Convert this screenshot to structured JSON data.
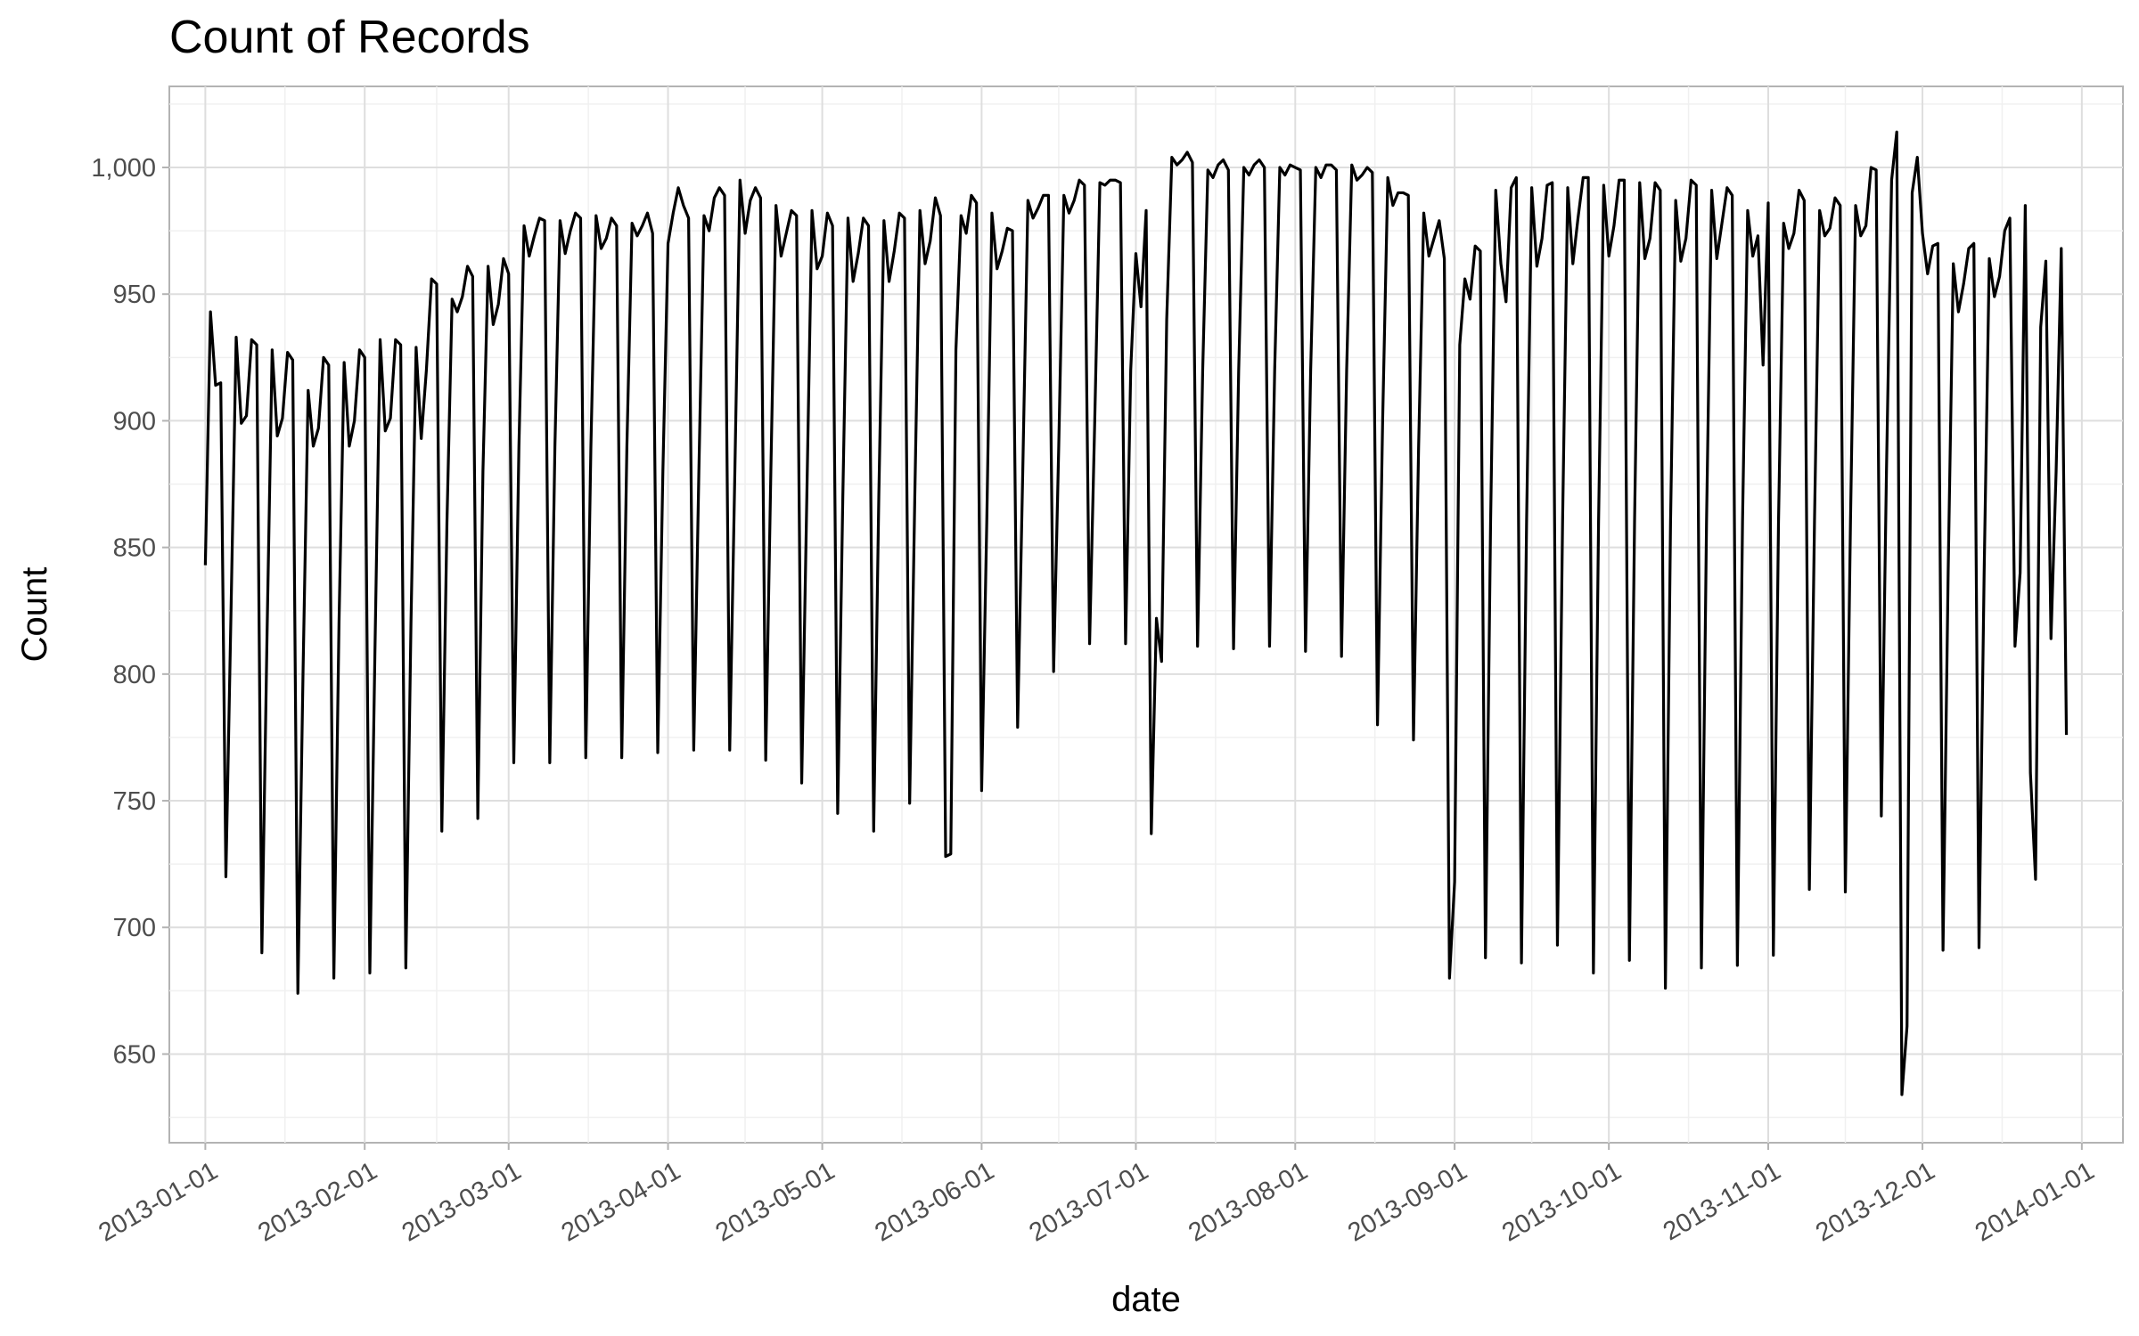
{
  "chart_data": {
    "type": "line",
    "title": "Count of Records",
    "xlabel": "date",
    "ylabel": "Count",
    "x_ticks": [
      "2013-01-01",
      "2013-02-01",
      "2013-03-01",
      "2013-04-01",
      "2013-05-01",
      "2013-06-01",
      "2013-07-01",
      "2013-08-01",
      "2013-09-01",
      "2013-10-01",
      "2013-11-01",
      "2013-12-01",
      "2014-01-01"
    ],
    "y_ticks": [
      650,
      700,
      750,
      800,
      850,
      900,
      950,
      1000
    ],
    "y_tick_labels": [
      "650",
      "700",
      "750",
      "800",
      "850",
      "900",
      "950",
      "1,000"
    ],
    "xlim": [
      "2012-12-25",
      "2014-01-09"
    ],
    "ylim": [
      615,
      1032
    ],
    "grid": true,
    "line_color": "#000000",
    "series": [
      {
        "start_date": "2013-01-01",
        "values": [
          843,
          943,
          914,
          915,
          720,
          825,
          933,
          899,
          902,
          932,
          930,
          690,
          815,
          928,
          894,
          901,
          927,
          924,
          674,
          800,
          912,
          890,
          897,
          925,
          922,
          680,
          820,
          923,
          890,
          900,
          928,
          925,
          682,
          810,
          932,
          896,
          901,
          932,
          930,
          684,
          820,
          929,
          893,
          920,
          956,
          954,
          738,
          860,
          948,
          943,
          949,
          961,
          957,
          743,
          880,
          961,
          938,
          946,
          964,
          958,
          765,
          890,
          977,
          965,
          973,
          980,
          979,
          765,
          890,
          979,
          966,
          975,
          982,
          980,
          767,
          890,
          981,
          968,
          972,
          980,
          977,
          767,
          890,
          978,
          973,
          977,
          982,
          974,
          769,
          880,
          970,
          982,
          992,
          985,
          980,
          770,
          880,
          981,
          975,
          988,
          992,
          989,
          770,
          880,
          995,
          974,
          987,
          992,
          988,
          766,
          880,
          985,
          965,
          974,
          983,
          981,
          757,
          870,
          983,
          960,
          965,
          982,
          977,
          745,
          870,
          980,
          955,
          966,
          980,
          977,
          738,
          870,
          979,
          955,
          967,
          982,
          980,
          749,
          870,
          983,
          962,
          971,
          988,
          981,
          728,
          729,
          928,
          981,
          974,
          989,
          986,
          754,
          860,
          982,
          960,
          967,
          976,
          975,
          779,
          880,
          987,
          980,
          984,
          989,
          989,
          801,
          890,
          989,
          982,
          987,
          995,
          993,
          812,
          900,
          994,
          993,
          995,
          995,
          994,
          812,
          920,
          966,
          945,
          983,
          737,
          822,
          805,
          940,
          1004,
          1001,
          1003,
          1006,
          1002,
          811,
          920,
          999,
          996,
          1001,
          1003,
          999,
          810,
          920,
          1000,
          997,
          1001,
          1003,
          1000,
          811,
          920,
          1000,
          997,
          1001,
          1000,
          999,
          809,
          920,
          1000,
          996,
          1001,
          1001,
          999,
          807,
          920,
          1001,
          995,
          997,
          1000,
          998,
          780,
          900,
          996,
          985,
          990,
          990,
          989,
          774,
          890,
          982,
          965,
          972,
          979,
          964,
          680,
          718,
          930,
          956,
          948,
          969,
          967,
          688,
          860,
          991,
          962,
          947,
          992,
          996,
          686,
          860,
          992,
          961,
          972,
          993,
          994,
          693,
          860,
          992,
          962,
          980,
          996,
          996,
          682,
          860,
          993,
          965,
          977,
          995,
          995,
          687,
          860,
          994,
          964,
          972,
          994,
          991,
          676,
          860,
          987,
          963,
          972,
          995,
          993,
          684,
          860,
          991,
          964,
          978,
          992,
          989,
          685,
          860,
          983,
          965,
          973,
          922,
          986,
          689,
          860,
          978,
          968,
          974,
          991,
          987,
          715,
          860,
          983,
          973,
          976,
          988,
          985,
          714,
          860,
          985,
          973,
          977,
          1000,
          999,
          744,
          880,
          995,
          1014,
          634,
          661,
          990,
          1004,
          974,
          958,
          969,
          970,
          691,
          840,
          962,
          943,
          954,
          968,
          970,
          692,
          840,
          964,
          949,
          957,
          975,
          980,
          811,
          840,
          985,
          761,
          719,
          937,
          963,
          814,
          880,
          968,
          776
        ]
      }
    ]
  }
}
